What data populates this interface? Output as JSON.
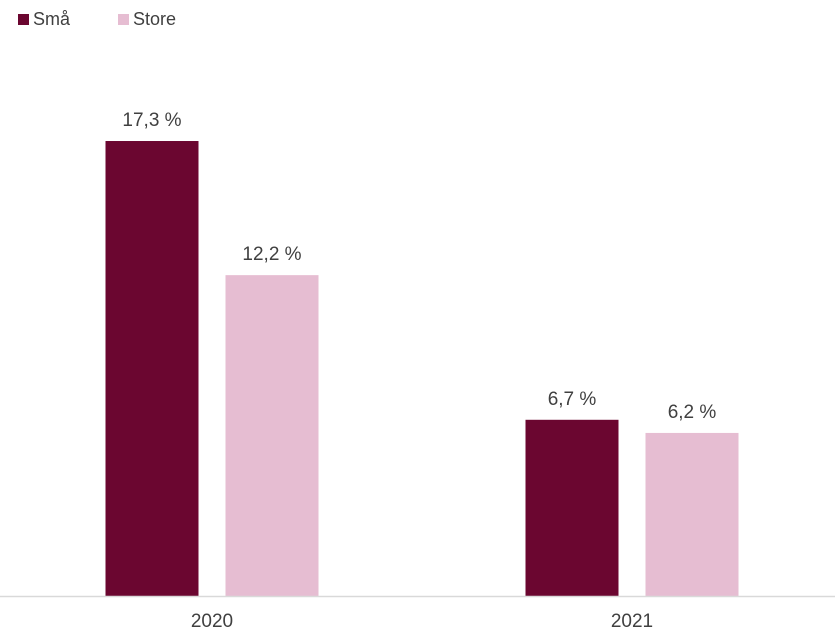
{
  "chart_data": {
    "type": "bar",
    "categories": [
      "2020",
      "2021"
    ],
    "series": [
      {
        "name": "Små",
        "values": [
          17.3,
          6.7
        ],
        "labels": [
          "17,3 %",
          "6,7 %"
        ],
        "color": "#6b0630"
      },
      {
        "name": "Store",
        "values": [
          12.2,
          6.2
        ],
        "labels": [
          "12,2 %",
          "6,2 %"
        ],
        "color": "#e6bdd2"
      }
    ],
    "title": "",
    "xlabel": "",
    "ylabel": "",
    "ylim": [
      0,
      20
    ],
    "grid": false,
    "legend": "top-left",
    "axis_color": "#d9d9d9",
    "text_color": "#404040"
  }
}
